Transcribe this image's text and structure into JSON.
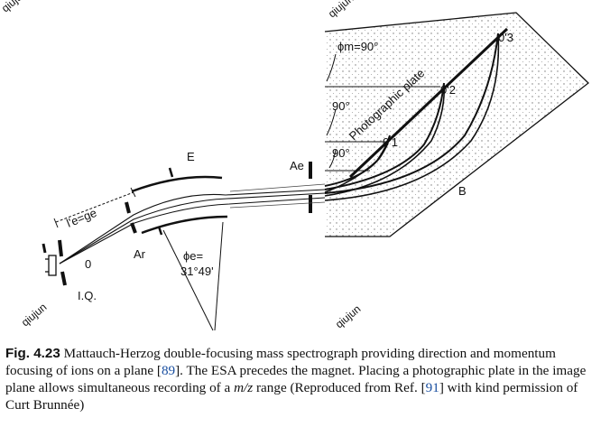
{
  "figure": {
    "labels": {
      "iq": "I.Q.",
      "origin": "0",
      "le_ge": "l'e=ge",
      "ar": "Ar",
      "e": "E",
      "phi_e_1": "ϕe=",
      "phi_e_2": "31°49'",
      "ae": "Ae",
      "phi_m": "ϕm=90°",
      "angle_90a": "90°",
      "angle_90b": "90°",
      "photo_plate": "Photographic plate",
      "o1": "0'1",
      "o2": "0'2",
      "o3": "0'3",
      "b": "B"
    },
    "watermarks": [
      "qiujun",
      "qiujun",
      "qiujun",
      "qiujun"
    ]
  },
  "caption": {
    "label": "Fig. 4.23",
    "part1": "Mattauch-Herzog double-focusing mass spectrograph providing direction and momentum focusing of ions on a plane [",
    "ref1": "89",
    "part2": "]. The ESA precedes the magnet. Placing a photographic plate in the image plane allows simultaneous recording of a ",
    "mz": "m/z",
    "part3": " range (Reproduced from Ref. [",
    "ref2": "91",
    "part4": "] with kind permission of Curt Brunnée)"
  }
}
